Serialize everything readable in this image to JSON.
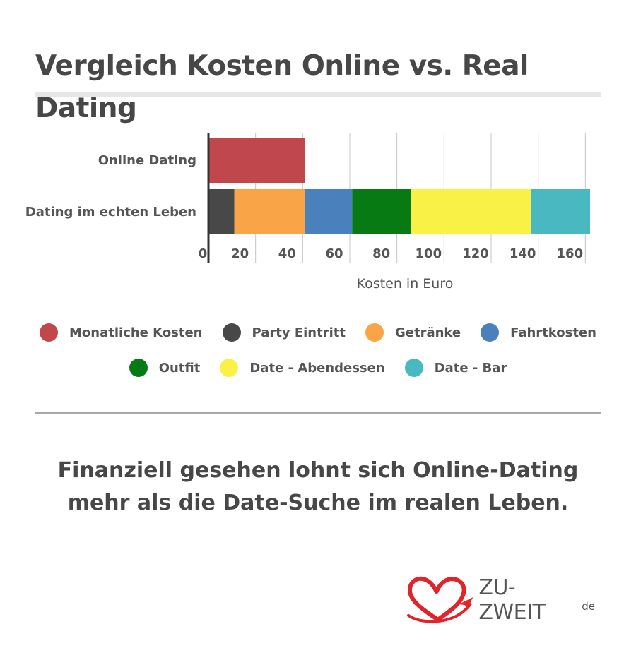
{
  "title": "Vergleich Kosten Online vs. Real Dating",
  "conclusion": {
    "line1": "Finanziell gesehen lohnt sich Online-Dating",
    "line2": "mehr als die Date-Suche im realen Leben."
  },
  "brand": {
    "name": "ZU-ZWEIT",
    "tld": "de",
    "logo_icon": "heart-swirl-paper-plane-icon",
    "logo_color": "#e2232a"
  },
  "chart_data": {
    "type": "bar",
    "orientation": "horizontal",
    "stacked": true,
    "categories": [
      "Online Dating",
      "Dating im echten Leben"
    ],
    "series": [
      {
        "name": "Monatliche Kosten",
        "color": "#c0474b",
        "values": [
          41,
          0
        ]
      },
      {
        "name": "Party Eintritt",
        "color": "#484848",
        "values": [
          0,
          11
        ]
      },
      {
        "name": "Getränke",
        "color": "#f9a447",
        "values": [
          0,
          30
        ]
      },
      {
        "name": "Fahrtkosten",
        "color": "#4a81bd",
        "values": [
          0,
          20
        ]
      },
      {
        "name": "Outfit",
        "color": "#087a14",
        "values": [
          0,
          25
        ]
      },
      {
        "name": "Date - Abendessen",
        "color": "#f9f145",
        "values": [
          0,
          51
        ]
      },
      {
        "name": "Date - Bar",
        "color": "#49b8c0",
        "values": [
          0,
          25
        ]
      }
    ],
    "xlabel": "Kosten in Euro",
    "xlim": [
      0,
      162
    ],
    "xticks": [
      0,
      20,
      40,
      60,
      80,
      100,
      120,
      140,
      160
    ],
    "grid": true,
    "legend_placement": "bottom"
  }
}
